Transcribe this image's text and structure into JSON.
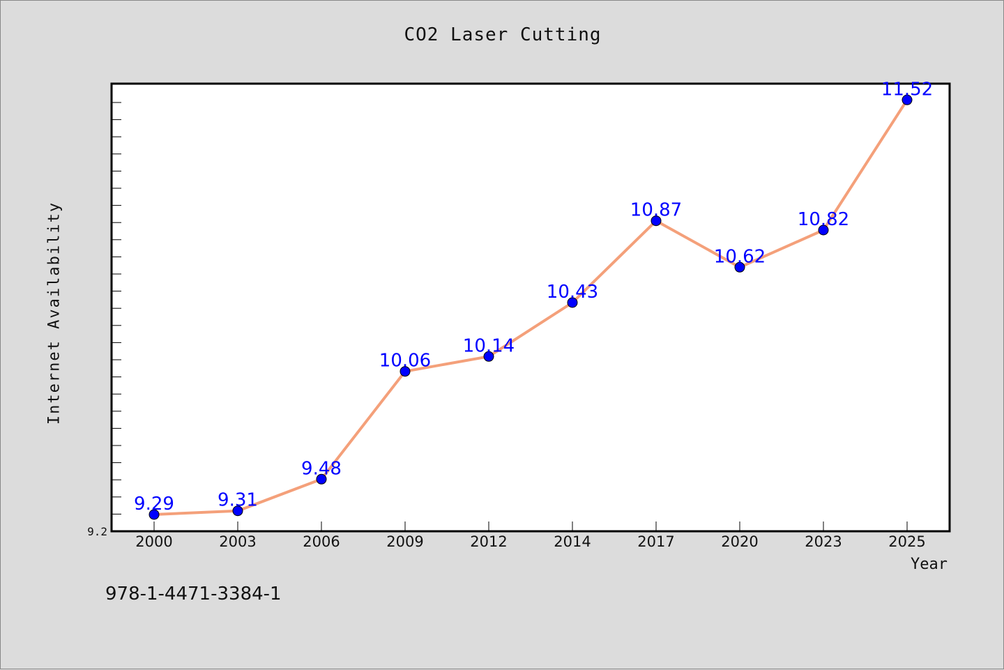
{
  "chart_data": {
    "type": "line",
    "title": "CO2 Laser Cutting",
    "xlabel": "Year",
    "ylabel": "Internet Availability",
    "categories": [
      "2000",
      "2003",
      "2006",
      "2009",
      "2012",
      "2014",
      "2017",
      "2020",
      "2023",
      "2025"
    ],
    "series": [
      {
        "values": [
          9.29,
          9.31,
          9.48,
          10.06,
          10.14,
          10.43,
          10.87,
          10.62,
          10.82,
          11.52
        ]
      }
    ],
    "data_labels": [
      "9.29",
      "9.31",
      "9.48",
      "10.06",
      "10.14",
      "10.43",
      "10.87",
      "10.62",
      "10.82",
      "11.52"
    ],
    "y_tick_labels": [
      "9.2"
    ],
    "ylim": [
      9.2,
      11.8
    ],
    "grid": false,
    "legend": "none",
    "colors": {
      "line": "#f4a07a",
      "marker": "#0000ff",
      "label": "#0000ff",
      "background": "#dcdcdc",
      "plot_background": "#ffffff"
    }
  },
  "footer": {
    "isbn": "978-1-4471-3384-1"
  }
}
